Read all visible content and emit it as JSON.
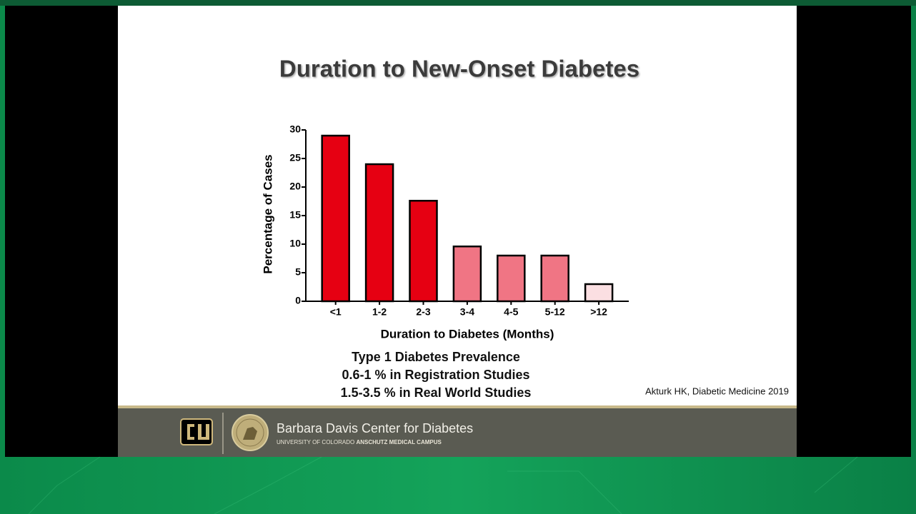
{
  "chart_data": {
    "type": "bar",
    "title": "Duration to New-Onset Diabetes",
    "x_label": "Duration to Diabetes (Months)",
    "y_label": "Percentage of Cases",
    "categories": [
      "<1",
      "1-2",
      "2-3",
      "3-4",
      "4-5",
      "5-12",
      ">12"
    ],
    "values": [
      29,
      24,
      17.6,
      9.6,
      8,
      8,
      3
    ],
    "colors": [
      "#e60012",
      "#e60012",
      "#e60012",
      "#f07584",
      "#f07584",
      "#f07584",
      "#fbdfe2"
    ],
    "ylim": [
      0,
      30
    ],
    "yticks": [
      0,
      5,
      10,
      15,
      20,
      25,
      30
    ],
    "grid": false
  },
  "slide": {
    "notes": [
      "Type 1 Diabetes Prevalence",
      "0.6-1 % in Registration Studies",
      "1.5-3.5 % in Real World Studies"
    ],
    "citation": "Akturk HK, Diabetic Medicine 2019",
    "footer": {
      "name": "Barbara Davis Center for Diabetes",
      "subtitle_plain": "UNIVERSITY OF COLORADO",
      "subtitle_bold": "ANSCHUTZ MEDICAL CAMPUS"
    }
  }
}
